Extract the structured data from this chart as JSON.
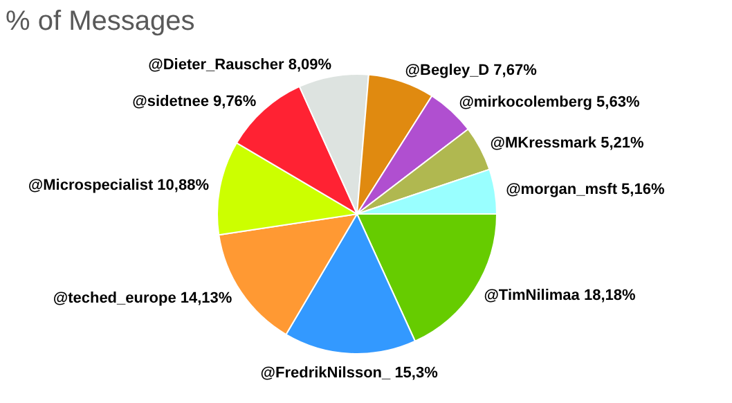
{
  "chart_data": {
    "type": "pie",
    "title": "% of Messages",
    "categories": [
      "@TimNilimaa",
      "@FredrikNilsson_",
      "@teched_europe",
      "@Microspecialist",
      "@sidetnee",
      "@Dieter_Rauscher",
      "@Begley_D",
      "@mirkocolemberg",
      "@MKressmark",
      "@morgan_msft"
    ],
    "values": [
      18.18,
      15.3,
      14.13,
      10.88,
      9.76,
      8.09,
      7.67,
      5.63,
      5.21,
      5.16
    ],
    "value_labels": [
      "18,18%",
      "15,3%",
      "14,13%",
      "10,88%",
      "9,76%",
      "8,09%",
      "7,67%",
      "5,63%",
      "5,21%",
      "5,16%"
    ],
    "colors": [
      "#66cc00",
      "#3399ff",
      "#ff9933",
      "#ccff00",
      "#ff2233",
      "#dde3e0",
      "#e08a10",
      "#b04fd0",
      "#b0b850",
      "#99ffff"
    ]
  }
}
